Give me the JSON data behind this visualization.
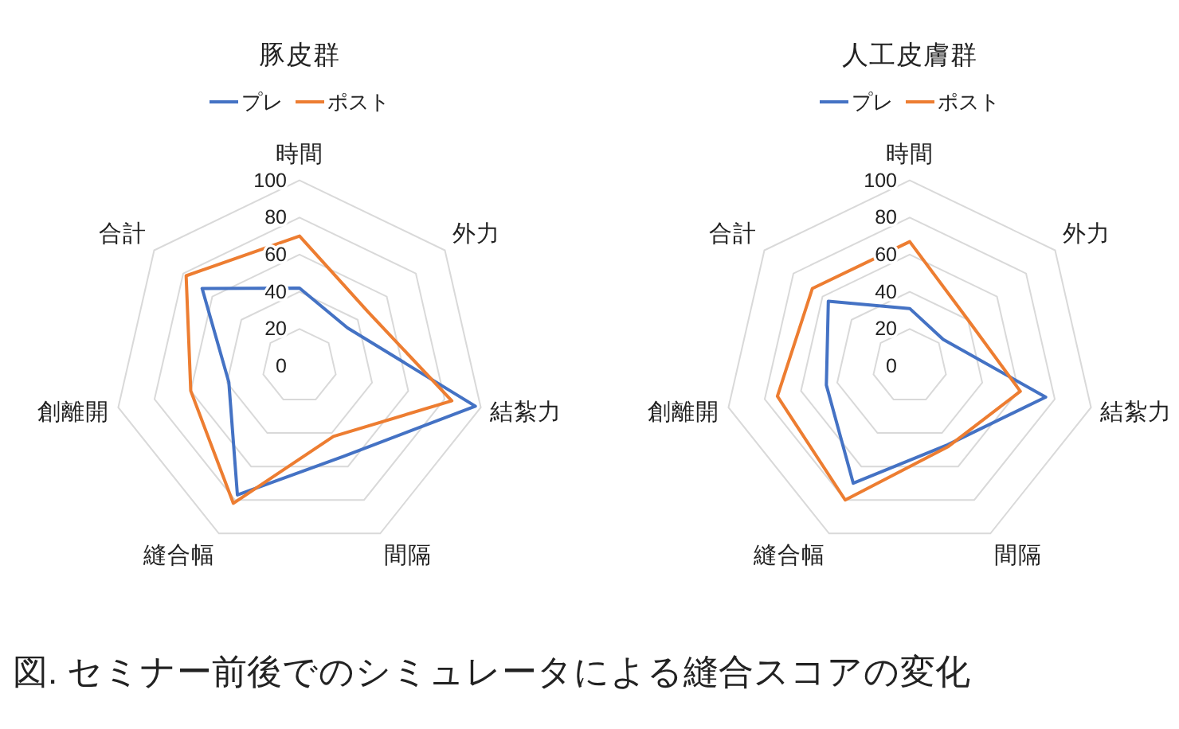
{
  "chart_data": [
    {
      "type": "radar",
      "title": "豚皮群",
      "categories": [
        "時間",
        "外力",
        "結紮力",
        "間隔",
        "縫合幅",
        "創離開",
        "合計"
      ],
      "series": [
        {
          "name": "プレ",
          "color": "#4472c4",
          "values": [
            42,
            33,
            97,
            54,
            77,
            39,
            67
          ]
        },
        {
          "name": "ポスト",
          "color": "#ed7d31",
          "values": [
            70,
            47,
            84,
            42,
            82,
            60,
            78
          ]
        }
      ],
      "ylim": [
        0,
        100
      ],
      "yticks": [
        0,
        20,
        40,
        60,
        80,
        100
      ],
      "grid": true,
      "legend": "top"
    },
    {
      "type": "radar",
      "title": "人工皮膚群",
      "categories": [
        "時間",
        "外力",
        "結紮力",
        "間隔",
        "縫合幅",
        "創離開",
        "合計"
      ],
      "series": [
        {
          "name": "プレ",
          "color": "#4472c4",
          "values": [
            31,
            23,
            75,
            47,
            70,
            46,
            56
          ]
        },
        {
          "name": "ポスト",
          "color": "#ed7d31",
          "values": [
            67,
            40,
            61,
            48,
            80,
            73,
            67
          ]
        }
      ],
      "ylim": [
        0,
        100
      ],
      "yticks": [
        0,
        20,
        40,
        60,
        80,
        100
      ],
      "grid": true,
      "legend": "top"
    },
    {
      "type": "other",
      "annotations": [
        "図. セミナー前後でのシミュレータによる縫合スコアの変化"
      ]
    }
  ]
}
